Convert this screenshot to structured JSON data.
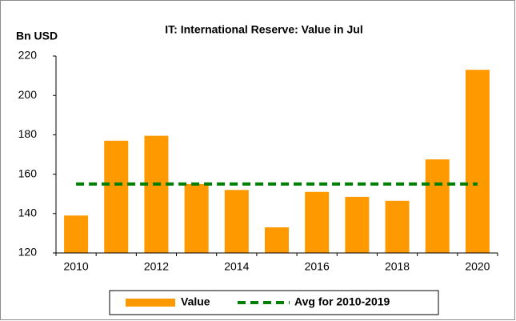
{
  "chart_data": {
    "type": "bar",
    "title": "IT: International Reserve: Value in Jul",
    "y_label": "Bn USD",
    "categories": [
      "2010",
      null,
      "2012",
      null,
      "2014",
      null,
      "2016",
      null,
      "2018",
      null,
      "2020"
    ],
    "series": [
      {
        "name": "Value",
        "color": "#ff9900",
        "values": [
          139,
          177,
          179.5,
          155,
          152,
          133,
          151,
          148.5,
          146.5,
          167.5,
          213
        ]
      }
    ],
    "average": {
      "name": "Avg for 2010-2019",
      "color": "#008000",
      "value": 155
    },
    "ylim": [
      120,
      220
    ],
    "yticks": [
      120,
      140,
      160,
      180,
      200,
      220
    ],
    "grid": false
  }
}
